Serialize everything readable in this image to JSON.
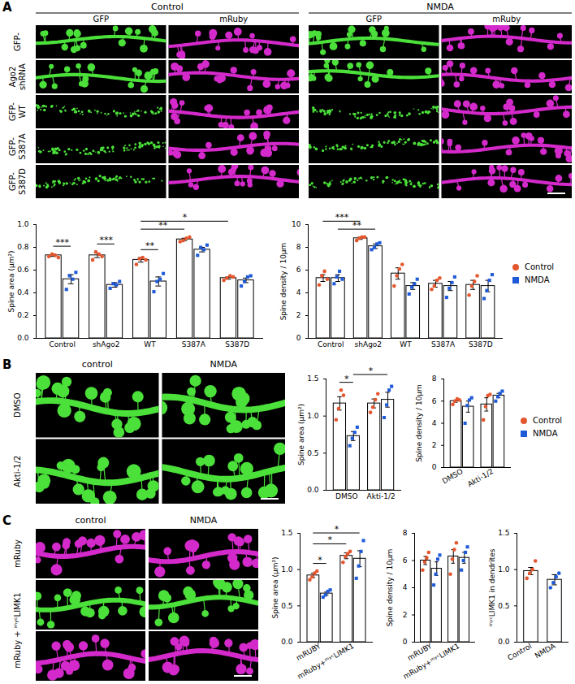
{
  "chart_data": [
    {
      "type": "bar",
      "ylabel": "Spine area (µm²)",
      "categories": [
        "Control",
        "shAgo2",
        "WT",
        "S387A",
        "S387D"
      ],
      "series": [
        {
          "name": "Control",
          "color": "#e4572e",
          "marker": "circle",
          "values": [
            0.73,
            0.73,
            0.69,
            0.87,
            0.53
          ],
          "errors": [
            0.01,
            0.02,
            0.02,
            0.01,
            0.01
          ],
          "points": [
            [
              0.72,
              0.74,
              0.73,
              0.71
            ],
            [
              0.69,
              0.76,
              0.74,
              0.72
            ],
            [
              0.65,
              0.7,
              0.71,
              0.69
            ],
            [
              0.85,
              0.86,
              0.88,
              0.89
            ],
            [
              0.51,
              0.53,
              0.55,
              0.54
            ]
          ]
        },
        {
          "name": "NMDA",
          "color": "#1f5bd8",
          "marker": "square",
          "values": [
            0.52,
            0.47,
            0.5,
            0.78,
            0.51
          ],
          "errors": [
            0.04,
            0.02,
            0.04,
            0.02,
            0.02
          ],
          "points": [
            [
              0.43,
              0.55,
              0.52,
              0.58
            ],
            [
              0.44,
              0.48,
              0.47,
              0.5
            ],
            [
              0.41,
              0.5,
              0.52,
              0.57
            ],
            [
              0.73,
              0.8,
              0.78,
              0.82
            ],
            [
              0.46,
              0.5,
              0.54,
              0.55
            ]
          ]
        }
      ],
      "ylim": [
        0,
        1
      ],
      "yticks": [
        {
          "value": 0,
          "label": "0.0"
        },
        0.2,
        0.4,
        0.6,
        0.8,
        {
          "value": 1,
          "label": "1.0"
        }
      ],
      "brackets": [
        {
          "from": [
            "Control",
            "Control"
          ],
          "to": [
            "Control",
            "NMDA"
          ],
          "label": "***"
        },
        {
          "from": [
            "shAgo2",
            "Control"
          ],
          "to": [
            "shAgo2",
            "NMDA"
          ],
          "label": "***"
        },
        {
          "from": [
            "WT",
            "Control"
          ],
          "to": [
            "WT",
            "NMDA"
          ],
          "label": "**"
        },
        {
          "from": [
            "WT",
            "Control"
          ],
          "to": [
            "S387A",
            "Control"
          ],
          "label": "**"
        },
        {
          "from": [
            "WT",
            "Control"
          ],
          "to": [
            "S387D",
            "Control"
          ],
          "label": "*"
        }
      ]
    },
    {
      "type": "bar",
      "ylabel": "Spine density / 10µm",
      "categories": [
        "Control",
        "shAgo2",
        "WT",
        "S387A",
        "S387D"
      ],
      "series": [
        {
          "name": "Control",
          "color": "#e4572e",
          "marker": "circle",
          "values": [
            5.3,
            8.8,
            5.7,
            4.8,
            4.7
          ],
          "errors": [
            0.3,
            0.1,
            0.5,
            0.3,
            0.4
          ],
          "points": [
            [
              4.7,
              5.5,
              5.9,
              5.2
            ],
            [
              8.6,
              8.8,
              8.9,
              8.9
            ],
            [
              4.6,
              5.5,
              6.1,
              6.5
            ],
            [
              4.3,
              4.6,
              5.1,
              5.3
            ],
            [
              3.8,
              4.6,
              5.0,
              5.5
            ]
          ]
        },
        {
          "name": "NMDA",
          "color": "#1f5bd8",
          "marker": "square",
          "values": [
            5.3,
            8.1,
            4.6,
            4.6,
            4.6
          ],
          "errors": [
            0.3,
            0.2,
            0.3,
            0.4,
            0.5
          ],
          "points": [
            [
              4.8,
              5.4,
              5.9,
              5.2
            ],
            [
              7.8,
              8.0,
              8.3,
              8.4
            ],
            [
              3.9,
              4.5,
              4.8,
              5.2
            ],
            [
              3.6,
              4.4,
              4.9,
              5.4
            ],
            [
              3.5,
              4.2,
              5.1,
              5.6
            ]
          ]
        }
      ],
      "ylim": [
        0,
        10
      ],
      "yticks": [
        0,
        2,
        4,
        6,
        8,
        10
      ],
      "legend": "right",
      "brackets": [
        {
          "from": [
            "Control",
            "NMDA"
          ],
          "to": [
            "shAgo2",
            "NMDA"
          ],
          "label": "**"
        },
        {
          "from": [
            "Control",
            "Control"
          ],
          "to": [
            "shAgo2",
            "Control"
          ],
          "label": "***"
        }
      ]
    },
    {
      "type": "bar",
      "ylabel": "Spine area (µm²)",
      "categories": [
        "DMSO",
        "Akti-1/2"
      ],
      "series": [
        {
          "name": "Control",
          "color": "#e4572e",
          "marker": "circle",
          "values": [
            1.17,
            1.17
          ],
          "errors": [
            0.09,
            0.06
          ],
          "points": [
            [
              0.95,
              1.1,
              1.35,
              1.28
            ],
            [
              1.05,
              1.12,
              1.22,
              1.3
            ]
          ]
        },
        {
          "name": "NMDA",
          "color": "#1f5bd8",
          "marker": "square",
          "values": [
            0.73,
            1.22
          ],
          "errors": [
            0.06,
            0.1
          ],
          "points": [
            [
              0.6,
              0.7,
              0.78,
              0.85
            ],
            [
              0.98,
              1.15,
              1.35,
              1.4
            ]
          ]
        }
      ],
      "ylim": [
        0,
        1.5
      ],
      "yticks": [
        {
          "value": 0,
          "label": "0.0"
        },
        0.5,
        {
          "value": 1,
          "label": "1.0"
        },
        1.5
      ],
      "brackets": [
        {
          "from": [
            "DMSO",
            "Control"
          ],
          "to": [
            "DMSO",
            "NMDA"
          ],
          "label": "*"
        },
        {
          "from": [
            "DMSO",
            "NMDA"
          ],
          "to": [
            "Akti-1/2",
            "NMDA"
          ],
          "label": "*"
        }
      ]
    },
    {
      "type": "bar",
      "ylabel": "Spine density / 10µm",
      "categories": [
        "DMSO",
        "Akti-1/2"
      ],
      "series": [
        {
          "name": "Control",
          "color": "#e4572e",
          "marker": "circle",
          "values": [
            6.0,
            5.7
          ],
          "errors": [
            0.1,
            0.6
          ],
          "points": [
            [
              5.7,
              6.0,
              6.2,
              6.1
            ],
            [
              4.3,
              5.5,
              6.5,
              6.6
            ]
          ]
        },
        {
          "name": "NMDA",
          "color": "#1f5bd8",
          "marker": "square",
          "values": [
            5.5,
            6.5
          ],
          "errors": [
            0.5,
            0.2
          ],
          "points": [
            [
              4.0,
              5.6,
              6.1,
              6.3
            ],
            [
              6.0,
              6.4,
              6.7,
              6.9
            ]
          ]
        }
      ],
      "ylim": [
        0,
        8
      ],
      "yticks": [
        0,
        2,
        4,
        6,
        8
      ],
      "legend": "right"
    },
    {
      "type": "bar",
      "ylabel": "Spine area (µm²)",
      "categories": [
        "mRUBY",
        "mRuby+ᵐʸᶜLIMK1"
      ],
      "series": [
        {
          "name": "Control",
          "color": "#e4572e",
          "marker": "circle",
          "values": [
            0.92,
            1.19
          ],
          "errors": [
            0.03,
            0.04
          ],
          "points": [
            [
              0.86,
              0.9,
              0.95,
              0.98
            ],
            [
              1.1,
              1.18,
              1.22,
              1.25
            ]
          ]
        },
        {
          "name": "NMDA",
          "color": "#1f5bd8",
          "marker": "square",
          "values": [
            0.67,
            1.15
          ],
          "errors": [
            0.02,
            0.11
          ],
          "points": [
            [
              0.62,
              0.65,
              0.7,
              0.72
            ],
            [
              0.88,
              1.05,
              1.25,
              1.4
            ]
          ]
        }
      ],
      "ylim": [
        0,
        1.5
      ],
      "yticks": [
        {
          "value": 0,
          "label": "0.0"
        },
        0.5,
        {
          "value": 1,
          "label": "1.0"
        },
        1.5
      ],
      "brackets": [
        {
          "from": [
            "mRUBY",
            "Control"
          ],
          "to": [
            "mRUBY",
            "NMDA"
          ],
          "label": "*"
        },
        {
          "from": [
            "mRUBY",
            "Control"
          ],
          "to": [
            "mRuby+ᵐʸᶜLIMK1",
            "Control"
          ],
          "label": "*"
        },
        {
          "from": [
            "mRUBY",
            "Control"
          ],
          "to": [
            "mRuby+ᵐʸᶜLIMK1",
            "NMDA"
          ],
          "label": "*"
        }
      ]
    },
    {
      "type": "bar",
      "ylabel": "Spine density / 10µm",
      "categories": [
        "mRUBY",
        "mRuby+ᵐʸᶜLIMK1"
      ],
      "series": [
        {
          "name": "Control",
          "color": "#e4572e",
          "marker": "circle",
          "values": [
            6.0,
            6.3
          ],
          "errors": [
            0.3,
            0.5
          ],
          "points": [
            [
              5.3,
              5.9,
              6.2,
              6.6
            ],
            [
              5.0,
              6.1,
              6.8,
              7.3
            ]
          ]
        },
        {
          "name": "NMDA",
          "color": "#1f5bd8",
          "marker": "square",
          "values": [
            5.4,
            6.2
          ],
          "errors": [
            0.5,
            0.4
          ],
          "points": [
            [
              4.2,
              5.0,
              6.1,
              6.4
            ],
            [
              5.3,
              6.0,
              6.6,
              7.0
            ]
          ]
        }
      ],
      "ylim": [
        0,
        8
      ],
      "yticks": [
        0,
        2,
        4,
        6,
        8
      ]
    },
    {
      "type": "bar",
      "ylabel": "ᵐʸᶜLIMK1 in dendrites",
      "categories": [
        "Control",
        "NMDA"
      ],
      "values": [
        0.98,
        0.86
      ],
      "errors": [
        0.05,
        0.07
      ],
      "points": [
        [
          0.88,
          0.95,
          1.0,
          1.12
        ],
        [
          0.75,
          0.82,
          0.9,
          0.95
        ]
      ],
      "colors": [
        "#e4572e",
        "#1f5bd8"
      ],
      "marker": "circle",
      "ylim": [
        0,
        1.5
      ],
      "yticks": [
        {
          "value": 0,
          "label": "0.0"
        },
        0.5,
        {
          "value": 1,
          "label": "1.0"
        },
        1.5
      ]
    }
  ],
  "figure": {
    "panels": [
      {
        "letter": "A",
        "groups": [
          "Control",
          "NMDA"
        ],
        "columns": [
          {
            "label": "GFP",
            "color": "#4be03a"
          },
          {
            "label": "mRuby",
            "color": "#d42acb"
          }
        ],
        "rows": [
          {
            "label": [
              "GFP-"
            ]
          },
          {
            "label": [
              "Ago2",
              "shRNA"
            ]
          },
          {
            "label": [
              "GFP-",
              "WT"
            ]
          },
          {
            "label": [
              "GFP-",
              "S387A"
            ]
          },
          {
            "label": [
              "GFP-",
              "S387D"
            ]
          }
        ]
      },
      {
        "letter": "B",
        "groups": [
          "control",
          "NMDA"
        ],
        "rows": [
          {
            "label": [
              "DMSO"
            ],
            "colors": [
              "#4be03a"
            ]
          },
          {
            "label": [
              "Akti-1/2"
            ],
            "colors": [
              "#4be03a"
            ]
          }
        ]
      },
      {
        "letter": "C",
        "groups": [
          "control",
          "NMDA"
        ],
        "rows": [
          {
            "label": [
              "mRuby"
            ],
            "colors": [
              "#d42acb"
            ]
          },
          {
            "label": [
              "mRuby + ᵐʸᶜLIMK1"
            ],
            "colors": [
              "#4be03a",
              "#d42acb"
            ]
          }
        ]
      }
    ]
  }
}
